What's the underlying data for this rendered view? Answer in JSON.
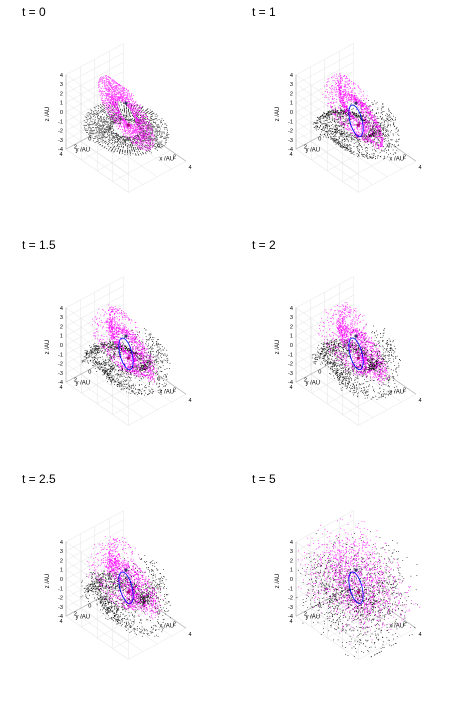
{
  "figure": {
    "panels": [
      {
        "label": "t = 0",
        "t": 0
      },
      {
        "label": "t = 1",
        "t": 1
      },
      {
        "label": "t = 1.5",
        "t": 1.5
      },
      {
        "label": "t = 2",
        "t": 2
      },
      {
        "label": "t = 2.5",
        "t": 2.5
      },
      {
        "label": "t = 5",
        "t": 5
      }
    ]
  },
  "chart_data": [
    {
      "type": "scatter",
      "title": "t = 0",
      "t": 0,
      "xlabel": "x /AU",
      "ylabel": "y /AU",
      "zlabel": "z /AU",
      "xlim": [
        -4,
        4
      ],
      "ylim": [
        -4,
        4
      ],
      "zlim": [
        -4,
        4
      ],
      "x_ticks": [
        "-4",
        "-2",
        "0",
        "2",
        "4"
      ],
      "y_ticks": [
        "-4",
        "-2",
        "0",
        "2",
        "4"
      ],
      "z_ticks": [
        "-4",
        "-3",
        "-2",
        "-1",
        "0",
        "1",
        "2",
        "3",
        "4"
      ],
      "series_colors": [
        "#000000",
        "#ff00ff",
        "#0000ff"
      ],
      "projection": "3d",
      "grid": true
    },
    {
      "type": "scatter",
      "title": "t = 1",
      "t": 1,
      "xlabel": "x /AU",
      "ylabel": "y /AU",
      "zlabel": "z /AU",
      "xlim": [
        -4,
        4
      ],
      "ylim": [
        -4,
        4
      ],
      "zlim": [
        -4,
        4
      ],
      "x_ticks": [
        "-4",
        "-2",
        "0",
        "2",
        "4"
      ],
      "y_ticks": [
        "-4",
        "-2",
        "0",
        "2",
        "4"
      ],
      "z_ticks": [
        "-4",
        "-3",
        "-2",
        "-1",
        "0",
        "1",
        "2",
        "3",
        "4"
      ],
      "series_colors": [
        "#000000",
        "#ff00ff",
        "#0000ff"
      ],
      "projection": "3d",
      "grid": true
    },
    {
      "type": "scatter",
      "title": "t = 1.5",
      "t": 1.5,
      "xlabel": "x /AU",
      "ylabel": "y /AU",
      "zlabel": "z /AU",
      "xlim": [
        -4,
        4
      ],
      "ylim": [
        -4,
        4
      ],
      "zlim": [
        -4,
        4
      ],
      "x_ticks": [
        "-4",
        "-2",
        "0",
        "2",
        "4"
      ],
      "y_ticks": [
        "-4",
        "-2",
        "0",
        "2",
        "4"
      ],
      "z_ticks": [
        "-4",
        "-3",
        "-2",
        "-1",
        "0",
        "1",
        "2",
        "3",
        "4"
      ],
      "series_colors": [
        "#000000",
        "#ff00ff",
        "#0000ff"
      ],
      "projection": "3d",
      "grid": true
    },
    {
      "type": "scatter",
      "title": "t = 2",
      "t": 2,
      "xlabel": "x /AU",
      "ylabel": "y /AU",
      "zlabel": "z /AU",
      "xlim": [
        -4,
        4
      ],
      "ylim": [
        -4,
        4
      ],
      "zlim": [
        -4,
        4
      ],
      "x_ticks": [
        "-4",
        "-2",
        "0",
        "2",
        "4"
      ],
      "y_ticks": [
        "-4",
        "-2",
        "0",
        "2",
        "4"
      ],
      "z_ticks": [
        "-4",
        "-3",
        "-2",
        "-1",
        "0",
        "1",
        "2",
        "3",
        "4"
      ],
      "series_colors": [
        "#000000",
        "#ff00ff",
        "#0000ff"
      ],
      "projection": "3d",
      "grid": true
    },
    {
      "type": "scatter",
      "title": "t = 2.5",
      "t": 2.5,
      "xlabel": "x /AU",
      "ylabel": "y /AU",
      "zlabel": "z /AU",
      "xlim": [
        -4,
        4
      ],
      "ylim": [
        -4,
        4
      ],
      "zlim": [
        -4,
        4
      ],
      "x_ticks": [
        "-4",
        "-2",
        "0",
        "2",
        "4"
      ],
      "y_ticks": [
        "-4",
        "-2",
        "0",
        "2",
        "4"
      ],
      "z_ticks": [
        "-4",
        "-3",
        "-2",
        "-1",
        "0",
        "1",
        "2",
        "3",
        "4"
      ],
      "series_colors": [
        "#000000",
        "#ff00ff",
        "#0000ff"
      ],
      "projection": "3d",
      "grid": true
    },
    {
      "type": "scatter",
      "title": "t = 5",
      "t": 5,
      "xlabel": "x /AU",
      "ylabel": "y /AU",
      "zlabel": "z /AU",
      "xlim": [
        -4,
        4
      ],
      "ylim": [
        -4,
        4
      ],
      "zlim": [
        -4,
        4
      ],
      "x_ticks": [
        "-4",
        "-2",
        "0",
        "2",
        "4"
      ],
      "y_ticks": [
        "-4",
        "-2",
        "0",
        "2",
        "4"
      ],
      "z_ticks": [
        "-4",
        "-3",
        "-2",
        "-1",
        "0",
        "1",
        "2",
        "3",
        "4"
      ],
      "series_colors": [
        "#000000",
        "#ff00ff",
        "#0000ff"
      ],
      "projection": "3d",
      "grid": true
    }
  ]
}
